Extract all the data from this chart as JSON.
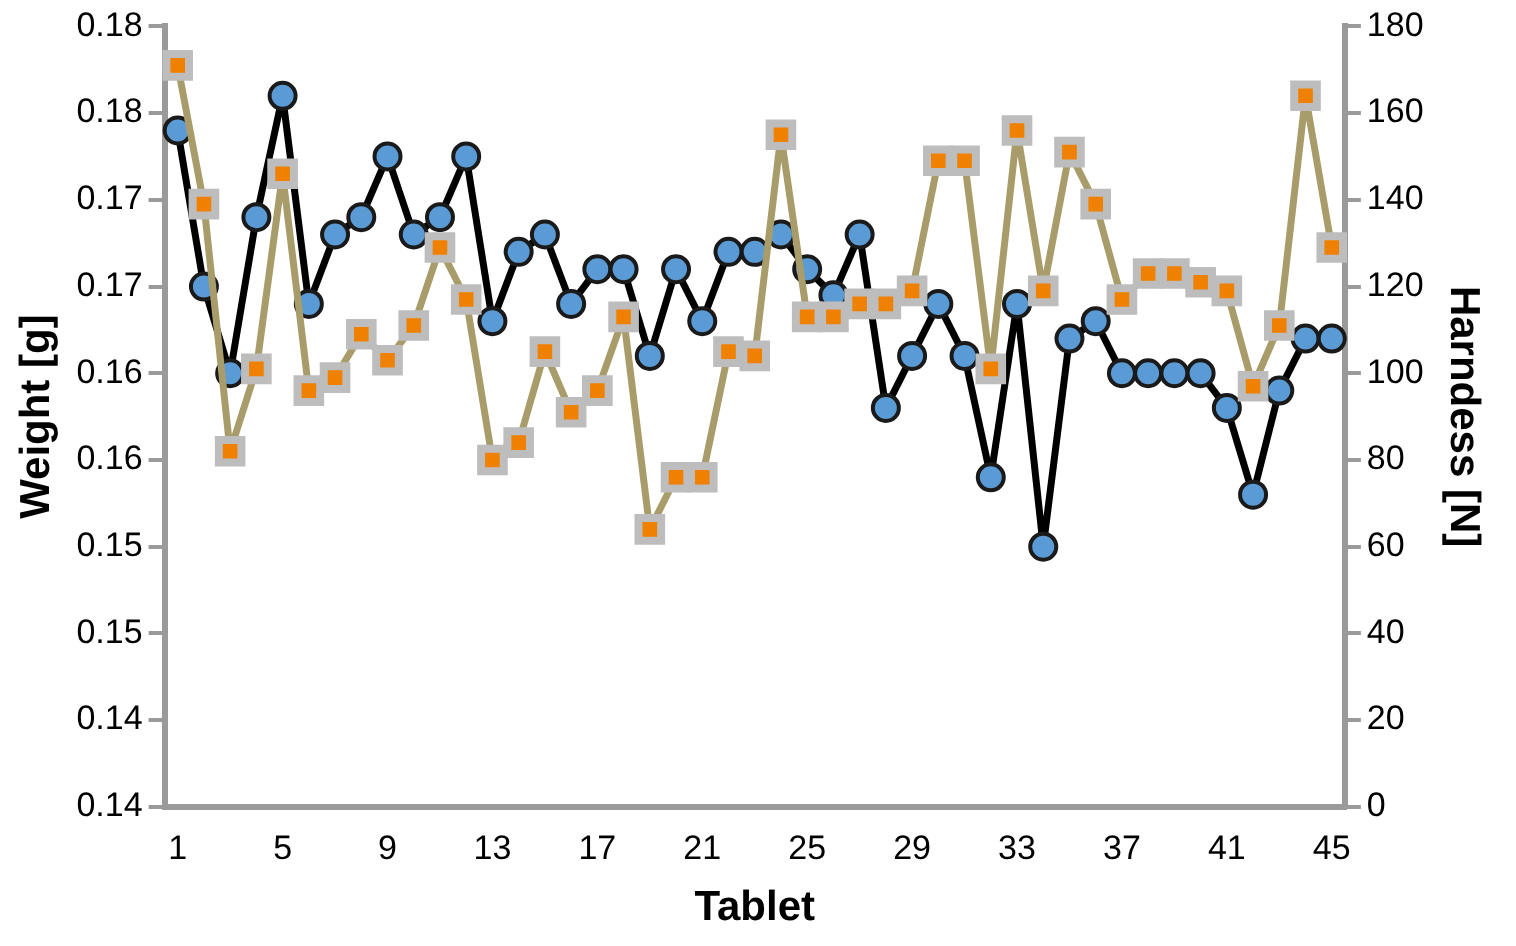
{
  "chart_data": {
    "type": "line",
    "xlabel": "Tablet",
    "ylabel": "Weight [g]",
    "y2label": "Harndess [N]",
    "categories": [
      "1",
      null,
      null,
      null,
      "5",
      null,
      null,
      null,
      "9",
      null,
      null,
      null,
      "13",
      null,
      null,
      null,
      "17",
      null,
      null,
      null,
      "21",
      null,
      null,
      null,
      "25",
      null,
      null,
      null,
      "29",
      null,
      null,
      null,
      "33",
      null,
      null,
      null,
      "37",
      null,
      null,
      null,
      "41",
      null,
      null,
      null,
      "45"
    ],
    "series": [
      {
        "marker": "circle",
        "color": "#5b9bd5",
        "values": [
          0.179,
          0.17,
          0.165,
          0.174,
          0.181,
          0.169,
          0.173,
          0.174,
          0.1775,
          0.173,
          0.174,
          0.1775,
          0.168,
          0.172,
          0.173,
          0.169,
          0.171,
          0.171,
          0.166,
          0.171,
          0.168,
          0.172,
          0.172,
          0.173,
          0.171,
          0.1695,
          0.173,
          0.163,
          0.166,
          0.169,
          0.166,
          0.159,
          0.169,
          0.155,
          0.167,
          0.168,
          0.165,
          0.165,
          0.165,
          0.165,
          0.163,
          0.158,
          0.164,
          0.167,
          0.167
        ]
      },
      {
        "marker": "square",
        "color": "#f08000",
        "axis": "y2",
        "values": [
          171,
          139,
          82,
          101,
          146,
          96,
          99,
          109,
          103,
          111,
          129,
          117,
          80,
          84,
          105,
          91,
          96,
          113,
          64,
          76,
          76,
          105,
          104,
          155,
          113,
          113,
          116,
          116,
          119,
          149,
          149,
          101,
          156,
          119,
          151,
          139,
          117,
          123,
          123,
          121,
          119,
          97,
          111,
          164,
          129
        ]
      }
    ],
    "ylim": [
      0.14,
      0.185
    ],
    "yticks": [
      {
        "value": 0.14,
        "label": "0.14"
      },
      {
        "value": 0.145,
        "label": "0.14"
      },
      {
        "value": 0.15,
        "label": "0.15"
      },
      {
        "value": 0.155,
        "label": "0.15"
      },
      {
        "value": 0.16,
        "label": "0.16"
      },
      {
        "value": 0.165,
        "label": "0.16"
      },
      {
        "value": 0.17,
        "label": "0.17"
      },
      {
        "value": 0.175,
        "label": "0.17"
      },
      {
        "value": 0.18,
        "label": "0.18"
      },
      {
        "value": 0.185,
        "label": "0.18"
      }
    ],
    "y2lim": [
      0,
      180
    ],
    "y2ticks": [
      0,
      20,
      40,
      60,
      80,
      100,
      120,
      140,
      160,
      180
    ],
    "legend": false,
    "grid": false
  }
}
